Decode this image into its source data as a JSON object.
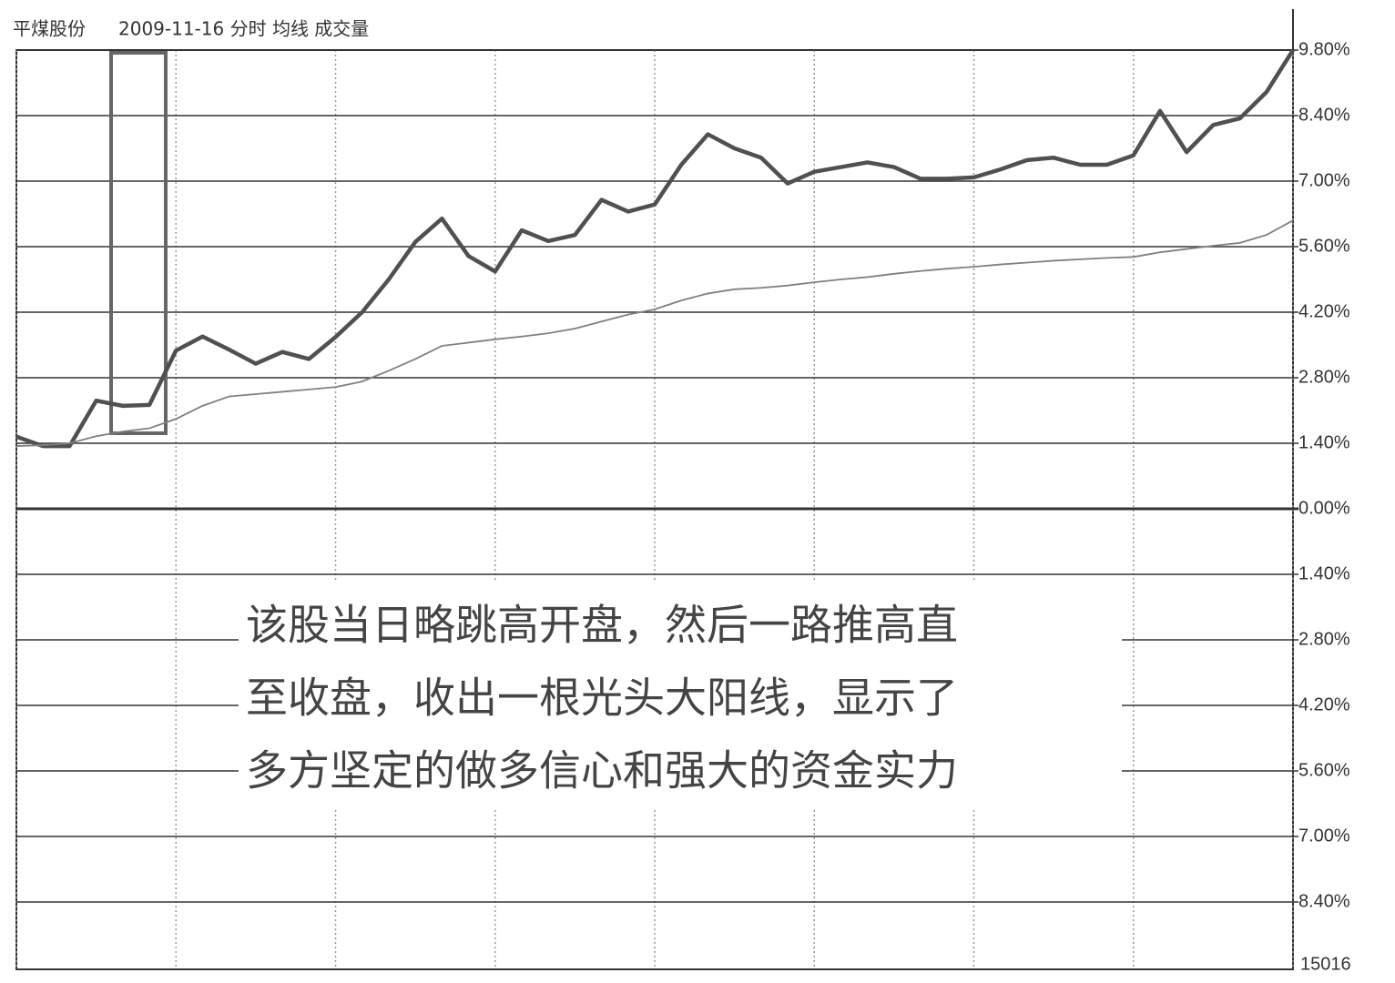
{
  "chart_data": {
    "type": "line",
    "title": "平煤股份",
    "subtitle": "2009-11-16 分时 均线 成交量",
    "annotation": [
      "该股当日略跳高开盘，然后一路推高直",
      "至收盘，收出一根光头大阳线，显示了",
      "多方坚定的做多信心和强大的资金实力"
    ],
    "volume_label": "15016",
    "x": [
      0,
      5,
      10,
      15,
      20,
      25,
      30,
      35,
      40,
      45,
      50,
      55,
      60,
      65,
      70,
      75,
      80,
      85,
      90,
      95,
      100,
      105,
      110,
      115,
      120,
      125,
      130,
      135,
      140,
      145,
      150,
      155,
      160,
      165,
      170,
      175,
      180,
      185,
      190,
      195,
      200,
      205,
      210,
      215,
      220,
      225,
      230,
      235,
      240
    ],
    "series": [
      {
        "color": "#505050",
        "values": [
          1.54,
          1.34,
          1.34,
          2.31,
          2.2,
          2.22,
          3.38,
          3.68,
          3.4,
          3.1,
          3.35,
          3.2,
          3.67,
          4.2,
          4.9,
          5.7,
          6.2,
          5.4,
          5.07,
          5.95,
          5.72,
          5.85,
          6.6,
          6.35,
          6.5,
          7.35,
          8.0,
          7.7,
          7.5,
          6.95,
          7.2,
          7.3,
          7.4,
          7.3,
          7.05,
          7.05,
          7.08,
          7.25,
          7.45,
          7.5,
          7.35,
          7.35,
          7.55,
          8.5,
          7.62,
          8.2,
          8.34,
          8.9,
          9.8
        ]
      },
      {
        "color": "#808080",
        "values": [
          1.34,
          1.36,
          1.4,
          1.55,
          1.65,
          1.72,
          1.92,
          2.2,
          2.4,
          2.45,
          2.5,
          2.55,
          2.6,
          2.72,
          2.95,
          3.2,
          3.48,
          3.55,
          3.62,
          3.68,
          3.75,
          3.85,
          4.0,
          4.15,
          4.26,
          4.45,
          4.6,
          4.69,
          4.72,
          4.77,
          4.84,
          4.9,
          4.95,
          5.02,
          5.08,
          5.13,
          5.17,
          5.22,
          5.26,
          5.3,
          5.33,
          5.36,
          5.38,
          5.48,
          5.55,
          5.62,
          5.68,
          5.85,
          6.16
        ]
      }
    ],
    "xlim": [
      0,
      240
    ],
    "xticks": [
      0,
      30,
      60,
      90,
      120,
      150,
      180,
      210,
      240
    ],
    "ylim": [
      -9.8,
      9.8
    ],
    "yticks": [
      {
        "value": 9.8,
        "label": "9.80%"
      },
      {
        "value": 8.4,
        "label": "8.40%"
      },
      {
        "value": 7.0,
        "label": "7.00%"
      },
      {
        "value": 5.6,
        "label": "5.60%"
      },
      {
        "value": 4.2,
        "label": "4.20%"
      },
      {
        "value": 2.8,
        "label": "2.80%"
      },
      {
        "value": 1.4,
        "label": "1.40%"
      },
      {
        "value": 0,
        "label": "0.00%"
      },
      {
        "value": -1.4,
        "label": "1.40%"
      },
      {
        "value": -2.8,
        "label": "2.80%"
      },
      {
        "value": -4.2,
        "label": "4.20%"
      },
      {
        "value": -5.6,
        "label": "5.60%"
      },
      {
        "value": -7.0,
        "label": "7.00%"
      },
      {
        "value": -8.4,
        "label": "8.40%"
      }
    ],
    "grid": true
  }
}
